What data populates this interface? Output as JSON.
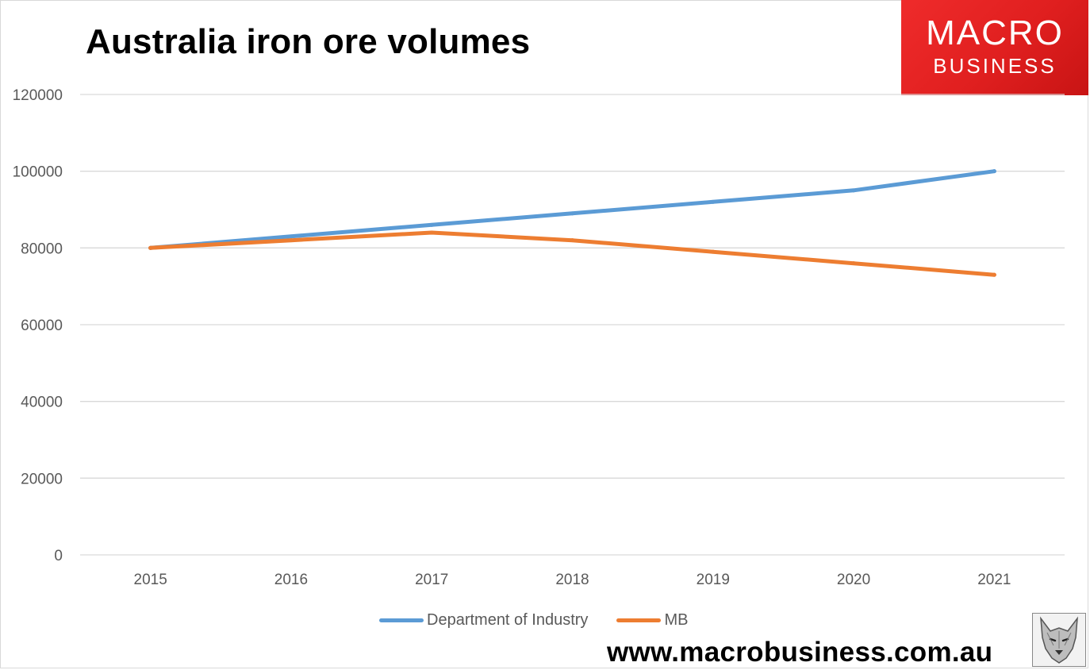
{
  "brand": {
    "logo_line1": "MACRO",
    "logo_line2": "BUSINESS",
    "logo_color": "#e32626",
    "website": "www.macrobusiness.com.au",
    "mascot_icon": "wolf-icon"
  },
  "chart_data": {
    "type": "line",
    "title": "Australia iron ore volumes",
    "categories": [
      "2015",
      "2016",
      "2017",
      "2018",
      "2019",
      "2020",
      "2021"
    ],
    "series": [
      {
        "name": "Department of Industry",
        "color": "#5b9bd5",
        "values": [
          80000,
          83000,
          86000,
          89000,
          92000,
          95000,
          100000
        ]
      },
      {
        "name": "MB",
        "color": "#ed7d31",
        "values": [
          80000,
          82000,
          84000,
          82000,
          79000,
          76000,
          73000
        ]
      }
    ],
    "ylim": [
      0,
      120000
    ],
    "yticks": [
      "0",
      "20000",
      "40000",
      "60000",
      "80000",
      "100000",
      "120000"
    ],
    "xlabel": "",
    "ylabel": "",
    "grid": true,
    "legend_position": "bottom"
  }
}
